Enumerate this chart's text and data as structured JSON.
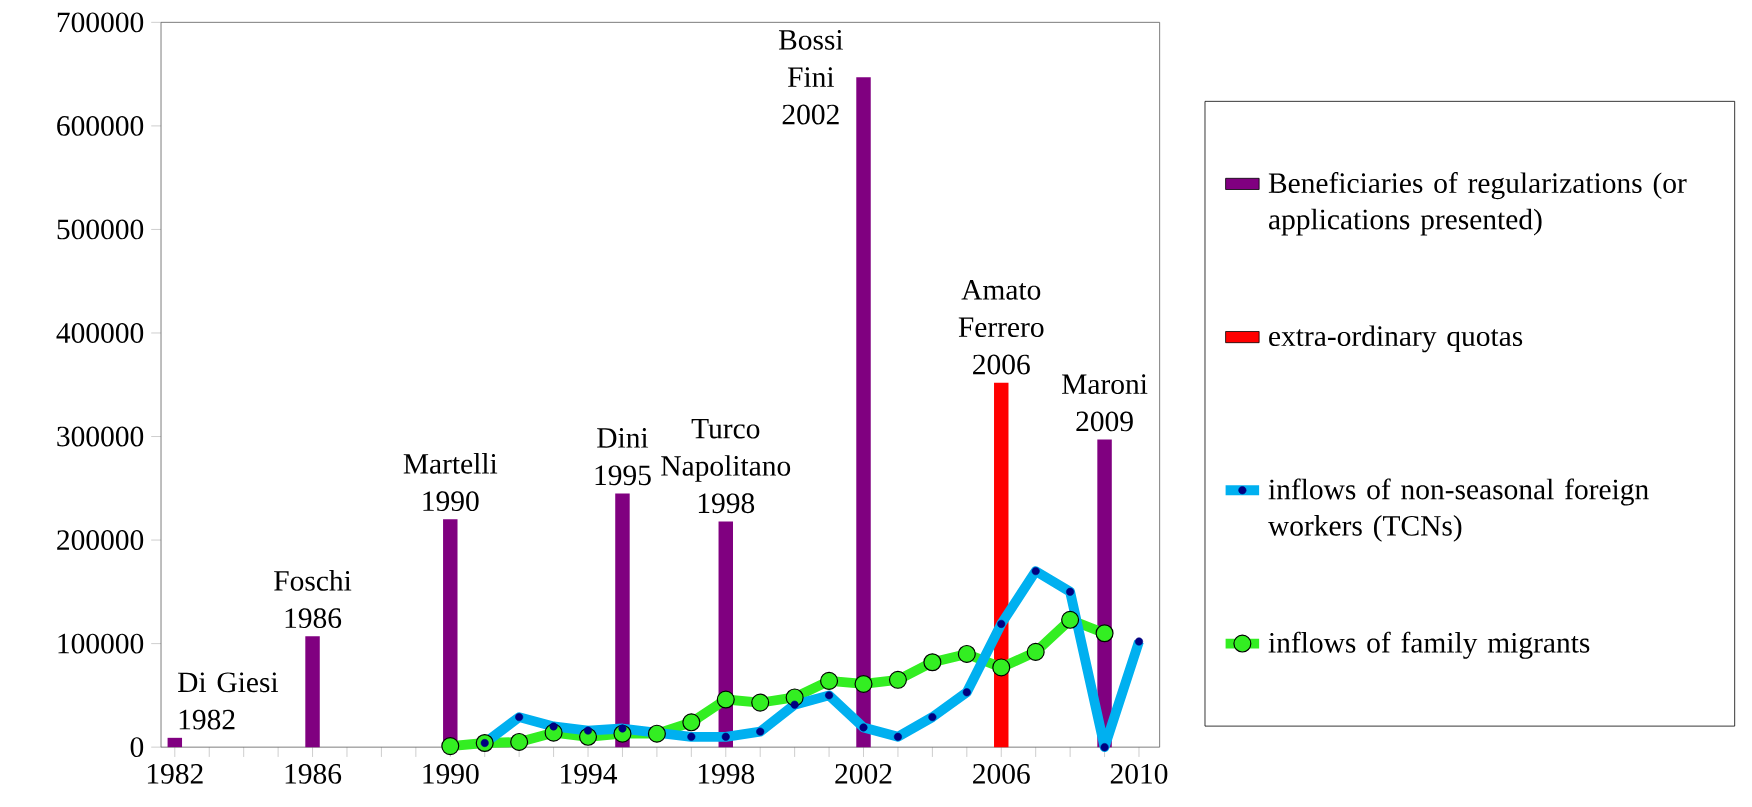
{
  "chart_data": {
    "type": "bar",
    "series": [
      {
        "name": "Beneficiaries of regularizations (or applications presented)",
        "color": "#800080",
        "x": [
          1982,
          1986,
          1990,
          1995,
          1998,
          2002,
          2009
        ],
        "values": [
          9000,
          107000,
          220000,
          245000,
          218000,
          647000,
          297000
        ]
      },
      {
        "name": "extra-ordinary quotas",
        "color": "#ff0000",
        "x": [
          2006
        ],
        "values": [
          352000
        ]
      },
      {
        "name": "inflows of non-seasonal foreign workers (TCNs)",
        "type": "line",
        "color": "#00b0f0",
        "marker": "circle",
        "x": [
          1991,
          1992,
          1993,
          1994,
          1995,
          1996,
          1997,
          1998,
          1999,
          2000,
          2001,
          2002,
          2003,
          2004,
          2005,
          2006,
          2007,
          2008,
          2009,
          2010
        ],
        "values": [
          4000,
          29000,
          20000,
          16000,
          18000,
          null,
          10000,
          10000,
          15000,
          41000,
          50000,
          19000,
          10000,
          29000,
          53000,
          119000,
          170000,
          150000,
          0,
          102000
        ]
      },
      {
        "name": "inflows of family migrants",
        "type": "line",
        "color": "#33ee22",
        "marker": "circle",
        "x": [
          1990,
          1991,
          1992,
          1993,
          1994,
          1995,
          1996,
          1997,
          1998,
          1999,
          2000,
          2001,
          2002,
          2003,
          2004,
          2005,
          2006,
          2007,
          2008,
          2009
        ],
        "values": [
          1000,
          4000,
          5000,
          14000,
          10000,
          13000,
          13000,
          24000,
          46000,
          43000,
          48000,
          64000,
          61000,
          65000,
          82000,
          90000,
          77000,
          92000,
          123000,
          110000
        ]
      }
    ],
    "xlim": [
      1981.6,
      2010.6
    ],
    "xticks": [
      1982,
      {
        "value": 1983,
        "label": null
      },
      {
        "value": 1984,
        "label": null
      },
      {
        "value": 1985,
        "label": null
      },
      1986,
      {
        "value": 1987,
        "label": null
      },
      {
        "value": 1988,
        "label": null
      },
      {
        "value": 1989,
        "label": null
      },
      1990,
      {
        "value": 1991,
        "label": null
      },
      {
        "value": 1992,
        "label": null
      },
      {
        "value": 1993,
        "label": null
      },
      1994,
      {
        "value": 1995,
        "label": null
      },
      {
        "value": 1996,
        "label": null
      },
      {
        "value": 1997,
        "label": null
      },
      1998,
      {
        "value": 1999,
        "label": null
      },
      {
        "value": 2000,
        "label": null
      },
      {
        "value": 2001,
        "label": null
      },
      2002,
      {
        "value": 2003,
        "label": null
      },
      {
        "value": 2004,
        "label": null
      },
      {
        "value": 2005,
        "label": null
      },
      2006,
      {
        "value": 2007,
        "label": null
      },
      {
        "value": 2008,
        "label": null
      },
      {
        "value": 2009,
        "label": null
      },
      2010
    ],
    "ylim": [
      0,
      700000
    ],
    "yticks": [
      0,
      100000,
      200000,
      300000,
      400000,
      500000,
      600000,
      700000
    ],
    "grid": false,
    "legend": "right",
    "annotations": [
      {
        "text": "Di Giesi 1982",
        "x": 1982,
        "y": 9000
      },
      {
        "text": "Foschi 1986",
        "x": 1986,
        "y": 107000
      },
      {
        "text": "Martelli 1990",
        "x": 1990,
        "y": 220000
      },
      {
        "text": "Dini 1995",
        "x": 1995,
        "y": 245000
      },
      {
        "text": "Turco Napolitano 1998",
        "x": 1998,
        "y": 218000
      },
      {
        "text": "Bossi Fini 2002",
        "x": 2002,
        "y": 647000
      },
      {
        "text": "Amato Ferrero 2006",
        "x": 2006,
        "y": 352000
      },
      {
        "text": "Maroni 2009",
        "x": 2009,
        "y": 297000
      }
    ]
  }
}
